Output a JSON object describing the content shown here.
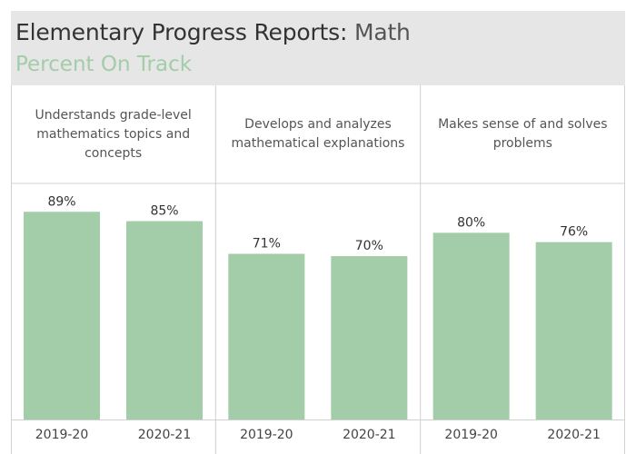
{
  "header": {
    "title_main": "Elementary Progress Reports:",
    "title_sub": "Math",
    "subtitle": "Percent On Track"
  },
  "colors": {
    "bar": "#a3cca8",
    "header_bg": "#e6e6e6",
    "subtitle": "#a3cca8",
    "divider": "#d0d0d0"
  },
  "chart_data": {
    "type": "bar",
    "categories": [
      "2019-20",
      "2020-21"
    ],
    "ylim": [
      0,
      100
    ],
    "grid": false,
    "panels": [
      {
        "title": "Understands grade-level mathematics topics and concepts",
        "values": [
          89,
          85
        ],
        "labels": [
          "89%",
          "85%"
        ]
      },
      {
        "title": "Develops and analyzes mathematical explanations",
        "values": [
          71,
          70
        ],
        "labels": [
          "71%",
          "70%"
        ]
      },
      {
        "title": "Makes sense of and solves problems",
        "values": [
          80,
          76
        ],
        "labels": [
          "80%",
          "76%"
        ]
      }
    ]
  }
}
